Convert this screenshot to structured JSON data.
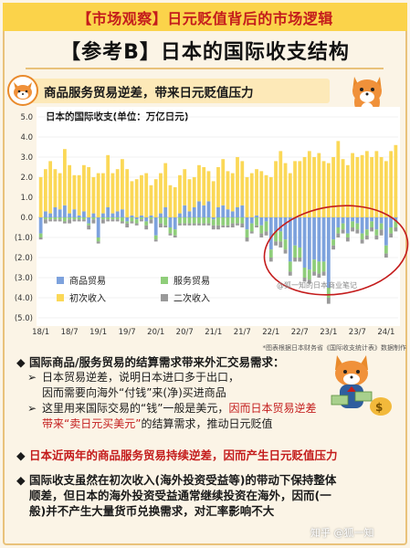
{
  "banner": "【市场观察】日元贬值背后的市场逻辑",
  "main_title": "【参考B】日本的国际收支结构",
  "subtitle": "商品服务贸易逆差，带来日元贬值压力",
  "chart_label": "日本的国际收支(单位：万亿日元)",
  "chart_watermark": "@狐一知的日本商业笔记",
  "source_note": "*图表根据日本财务省《国际收支统计表》数据制作",
  "legend": [
    "商品贸易",
    "服务贸易",
    "初次收入",
    "二次收入"
  ],
  "colors": {
    "goods": "#7da2dd",
    "services": "#8fce7a",
    "primary": "#fbd857",
    "secondary": "#9a9a9a",
    "accent_red": "#c41c1c",
    "banner_bg": "#fbd34a"
  },
  "chart_data": {
    "type": "bar",
    "stacked": true,
    "title": "日本的国际收支(单位：万亿日元)",
    "ylim": [
      -5.0,
      5.0
    ],
    "yticks": [
      "5.0",
      "4.0",
      "3.0",
      "2.0",
      "1.0",
      "0.0",
      "(1.0)",
      "(2.0)",
      "(3.0)",
      "(4.0)",
      "(5.0)"
    ],
    "xticks": [
      "18/1",
      "18/7",
      "19/1",
      "19/7",
      "20/1",
      "20/7",
      "21/1",
      "21/7",
      "22/1",
      "22/7",
      "23/1",
      "23/7",
      "24/1"
    ],
    "months": 75,
    "series": [
      {
        "name": "商品贸易",
        "values": [
          -0.8,
          0.3,
          0.2,
          0.5,
          0.4,
          0.6,
          0.2,
          0.4,
          0.1,
          0.3,
          -0.3,
          0.2,
          -1.0,
          0.2,
          0.5,
          0.2,
          0.3,
          0.4,
          -0.2,
          0.1,
          -0.1,
          0.1,
          -0.2,
          0.1,
          -0.9,
          0.2,
          0.5,
          -0.5,
          -0.6,
          0.2,
          0.6,
          0.3,
          0.5,
          0.8,
          0.6,
          0.8,
          -0.1,
          0.5,
          0.6,
          0.4,
          0.3,
          0.5,
          0.6,
          -0.6,
          -0.3,
          0.1,
          -0.4,
          -0.2,
          -1.6,
          -0.7,
          -0.7,
          -1.1,
          -2.2,
          -1.4,
          -1.5,
          -2.5,
          -2.6,
          -2.1,
          -2.2,
          -2.2,
          -3.5,
          -1.1,
          -0.5,
          -0.3,
          -0.8,
          -0.2,
          -0.3,
          -0.8,
          -0.6,
          -0.2,
          -0.6,
          -0.3,
          -1.4,
          -0.5,
          -0.2
        ]
      },
      {
        "name": "服务贸易",
        "values": [
          -0.2,
          -0.1,
          -0.1,
          -0.1,
          -0.1,
          -0.2,
          -0.1,
          -0.1,
          -0.1,
          -0.1,
          -0.1,
          -0.1,
          -0.2,
          -0.1,
          -0.1,
          -0.1,
          -0.1,
          -0.2,
          -0.1,
          -0.2,
          -0.2,
          -0.1,
          -0.2,
          -0.1,
          -0.2,
          -0.3,
          -0.4,
          -0.3,
          -0.3,
          -0.3,
          -0.3,
          -0.3,
          -0.3,
          -0.3,
          -0.3,
          -0.3,
          -0.3,
          -0.4,
          -0.4,
          -0.4,
          -0.3,
          -0.3,
          -0.3,
          -0.4,
          -0.4,
          -0.4,
          -0.4,
          -0.5,
          -0.4,
          -0.5,
          -0.5,
          -0.5,
          -0.5,
          -0.6,
          -0.5,
          -0.5,
          -0.5,
          -0.6,
          -0.6,
          -0.5,
          -0.5,
          -0.3,
          -0.3,
          -0.3,
          -0.2,
          -0.3,
          -0.3,
          -0.3,
          -0.3,
          -0.3,
          -0.3,
          -0.3,
          -0.4,
          -0.3,
          -0.3
        ]
      },
      {
        "name": "初次收入",
        "values": [
          2.0,
          2.1,
          2.6,
          1.9,
          1.8,
          2.8,
          2.4,
          1.7,
          2.0,
          2.3,
          2.5,
          1.8,
          2.2,
          2.0,
          2.6,
          2.0,
          2.1,
          2.5,
          2.4,
          1.7,
          1.9,
          2.0,
          2.2,
          1.5,
          1.9,
          2.0,
          2.2,
          1.6,
          1.5,
          1.9,
          1.8,
          1.6,
          1.5,
          1.8,
          1.9,
          1.5,
          1.8,
          2.0,
          2.3,
          1.9,
          1.9,
          2.5,
          2.2,
          2.0,
          2.2,
          2.3,
          2.3,
          2.1,
          2.0,
          2.8,
          3.3,
          2.7,
          2.2,
          2.8,
          2.8,
          3.0,
          3.3,
          3.0,
          3.2,
          2.8,
          2.7,
          3.0,
          3.8,
          2.9,
          2.6,
          3.2,
          3.0,
          3.1,
          3.3,
          3.0,
          3.3,
          3.0,
          2.8,
          3.3,
          3.6
        ]
      },
      {
        "name": "二次收入",
        "values": [
          -0.1,
          -0.2,
          -0.1,
          -0.1,
          -0.1,
          -0.1,
          -0.2,
          -0.1,
          -0.1,
          -0.1,
          -0.2,
          -0.2,
          -0.1,
          -0.2,
          -0.1,
          -0.1,
          -0.1,
          -0.1,
          -0.2,
          -0.1,
          -0.1,
          -0.1,
          -0.2,
          -0.2,
          -0.1,
          -0.2,
          -0.1,
          -0.1,
          -0.1,
          -0.1,
          -0.1,
          -0.1,
          -0.1,
          -0.1,
          -0.1,
          -0.1,
          -0.2,
          -0.2,
          -0.1,
          -0.1,
          -0.2,
          -0.1,
          -0.2,
          -0.2,
          -0.1,
          -0.1,
          -0.2,
          -0.2,
          -0.2,
          -0.2,
          -0.3,
          -0.2,
          -0.2,
          -0.2,
          -0.2,
          -0.2,
          -0.2,
          -0.2,
          -0.2,
          -0.2,
          -0.3,
          -0.2,
          -0.2,
          -0.2,
          -0.2,
          -0.2,
          -0.2,
          -0.2,
          -0.2,
          -0.2,
          -0.2,
          -0.3,
          -0.2,
          -0.2,
          -0.2
        ]
      }
    ]
  },
  "sections": {
    "s1_head": "国际商品/服务贸易的结算需求带来外汇交易需求：",
    "s1_a1": "日本贸易逆差，说明日本进口多于出口，",
    "s1_a2": "因而需要向海外“付钱”来(净)买进商品",
    "s1_b1": "这里用来国际交易的“钱”一般是美元，",
    "s1_b1_red": "因而日本贸易逆差",
    "s1_b2_red": "带来“卖日元买美元”",
    "s1_b2_tail": "的结算需求，推动日元贬值",
    "s2_head": "日本近两年的商品服务贸易持续逆差，因而产生日元贬值压力",
    "s3_l1": "国际收支虽然在初次收入(海外投资受益等)的带动下保持整体",
    "s3_l2": "顺差，但日本的海外投资受益通常继续投资在海外，因而(一",
    "s3_l3": "般)并不产生大量货币兑换需求，对汇率影响不大",
    "diamond": "◆",
    "arrow": "➢"
  },
  "watermark": "知乎 @狐一知"
}
